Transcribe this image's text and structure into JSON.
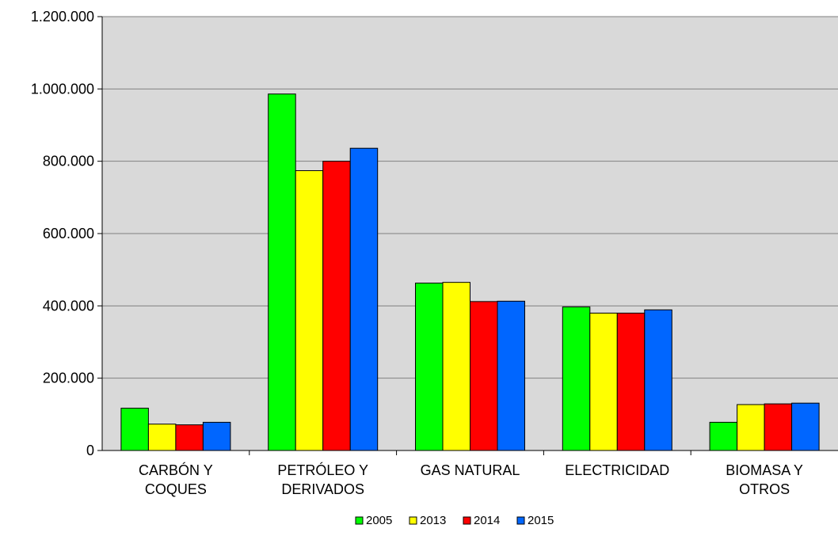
{
  "chart_data": {
    "type": "bar",
    "categories": [
      [
        "CARBÓN Y",
        "COQUES"
      ],
      [
        "PETRÓLEO Y",
        "DERIVADOS"
      ],
      [
        "GAS NATURAL"
      ],
      [
        "ELECTRICIDAD"
      ],
      [
        "BIOMASA Y",
        "OTROS"
      ]
    ],
    "series": [
      {
        "name": "2005",
        "color": "#00ff00",
        "values": [
          117000,
          986000,
          463000,
          397000,
          78000
        ]
      },
      {
        "name": "2013",
        "color": "#ffff00",
        "values": [
          73000,
          774000,
          465000,
          380000,
          127000
        ]
      },
      {
        "name": "2014",
        "color": "#ff0000",
        "values": [
          71000,
          800000,
          412000,
          380000,
          129000
        ]
      },
      {
        "name": "2015",
        "color": "#0066ff",
        "values": [
          78000,
          836000,
          413000,
          389000,
          131000
        ]
      }
    ],
    "yticks": [
      "0",
      "200.000",
      "400.000",
      "600.000",
      "800.000",
      "1.000.000",
      "1.200.000"
    ],
    "ylim": [
      0,
      1200000
    ],
    "ytick_step": 200000,
    "grid": true,
    "plot_background": "#d9d9d9",
    "legend_position": "bottom"
  }
}
